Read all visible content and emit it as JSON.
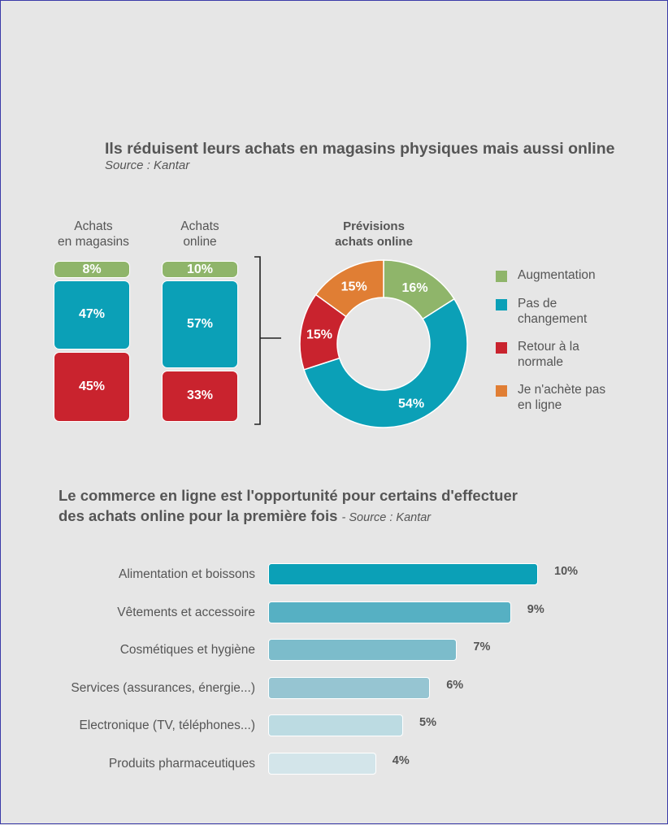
{
  "titles": {
    "chart1_title": "Ils réduisent leurs achats en magasins physiques mais aussi online",
    "chart1_source": "Source : Kantar",
    "chart2_title_line1": "Le commerce en ligne est l'opportunité pour certains d'effectuer",
    "chart2_title_line2": "des achats online pour la première fois",
    "chart2_source": "- Source : Kantar"
  },
  "colors": {
    "green": "#8fb56a",
    "teal": "#0ba0b7",
    "red": "#c9232e",
    "orange": "#e07e34",
    "hbar": [
      "#0ba0b7",
      "#56b0c3",
      "#7cbccb",
      "#96c5d2",
      "#bcdbe2",
      "#d3e5ea"
    ]
  },
  "chart_data": [
    {
      "type": "bar",
      "stacked": true,
      "categories": [
        "Achats en magasins",
        "Achats online"
      ],
      "category_lines": [
        [
          "Achats",
          "en magasins"
        ],
        [
          "Achats",
          "online"
        ]
      ],
      "series": [
        {
          "color": "green",
          "values": [
            8,
            10
          ],
          "labels": [
            "8%",
            "10%"
          ]
        },
        {
          "color": "teal",
          "values": [
            47,
            57
          ],
          "labels": [
            "47%",
            "57%"
          ]
        },
        {
          "color": "red",
          "values": [
            45,
            33
          ],
          "labels": [
            "45%",
            "33%"
          ]
        }
      ]
    },
    {
      "type": "pie",
      "donut": true,
      "title_lines": [
        "Prévisions",
        "achats online"
      ],
      "slices": [
        {
          "label": "Augmentation",
          "legend_lines": [
            "Augmentation"
          ],
          "value": 16,
          "value_label": "16%",
          "color": "green"
        },
        {
          "label": "Pas de changement",
          "legend_lines": [
            "Pas de",
            "changement"
          ],
          "value": 54,
          "value_label": "54%",
          "color": "teal"
        },
        {
          "label": "Retour à la normale",
          "legend_lines": [
            "Retour à la",
            "normale"
          ],
          "value": 15,
          "value_label": "15%",
          "color": "red"
        },
        {
          "label": "Je n'achète pas en ligne",
          "legend_lines": [
            "Je n'achète pas",
            "en ligne"
          ],
          "value": 15,
          "value_label": "15%",
          "color": "orange"
        }
      ],
      "legend_position": "right"
    },
    {
      "type": "bar",
      "orientation": "horizontal",
      "categories": [
        "Alimentation et boissons",
        "Vêtements et accessoire",
        "Cosmétiques et hygiène",
        "Services (assurances, énergie...)",
        "Electronique (TV, téléphones...)",
        "Produits pharmaceutiques"
      ],
      "values": [
        10,
        9,
        7,
        6,
        5,
        4
      ],
      "value_labels": [
        "10%",
        "9%",
        "7%",
        "6%",
        "5%",
        "4%"
      ],
      "xlim": [
        0,
        10
      ]
    }
  ]
}
